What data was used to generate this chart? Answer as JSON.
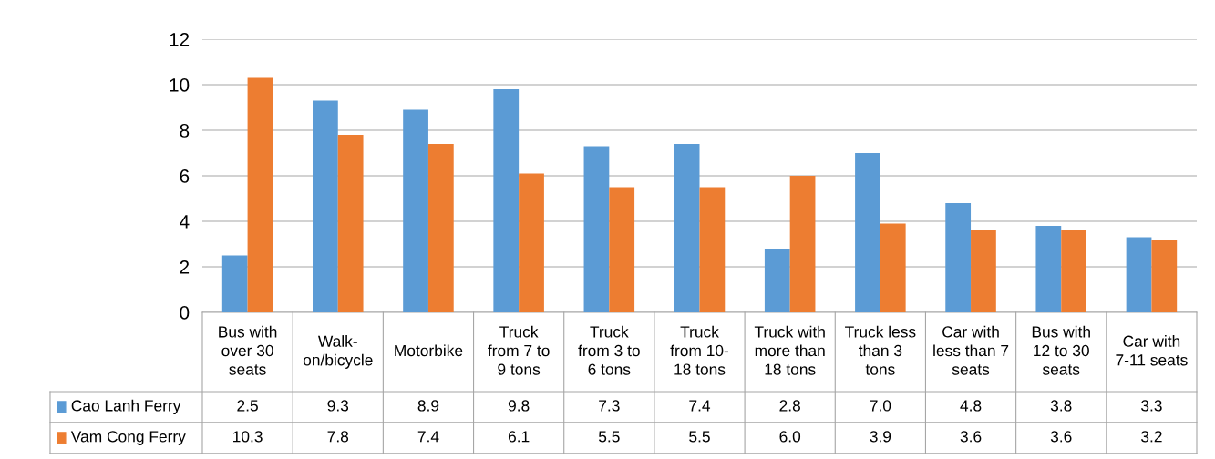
{
  "chart_data": {
    "type": "bar",
    "categories": [
      "Bus with\nover 30\nseats",
      "Walk-\non/bicycle",
      "Motorbike",
      "Truck\nfrom 7 to\n9 tons",
      "Truck\nfrom 3 to\n6 tons",
      "Truck\nfrom 10-\n18 tons",
      "Truck with\nmore than\n18 tons",
      "Truck less\nthan 3\ntons",
      "Car with\nless than 7\nseats",
      "Bus with\n12 to 30\nseats",
      "Car with\n7-11 seats"
    ],
    "series": [
      {
        "name": "Cao Lanh Ferry",
        "color": "#5b9bd5",
        "values": [
          2.5,
          9.3,
          8.9,
          9.8,
          7.3,
          7.4,
          2.8,
          7.0,
          4.8,
          3.8,
          3.3
        ],
        "value_labels": [
          "2.5",
          "9.3",
          "8.9",
          "9.8",
          "7.3",
          "7.4",
          "2.8",
          "7.0",
          "4.8",
          "3.8",
          "3.3"
        ]
      },
      {
        "name": "Vam Cong Ferry",
        "color": "#ed7d31",
        "values": [
          10.3,
          7.8,
          7.4,
          6.1,
          5.5,
          5.5,
          6.0,
          3.9,
          3.6,
          3.6,
          3.2
        ],
        "value_labels": [
          "10.3",
          "7.8",
          "7.4",
          "6.1",
          "5.5",
          "5.5",
          "6.0",
          "3.9",
          "3.6",
          "3.6",
          "3.2"
        ]
      }
    ],
    "ylim": [
      0,
      12
    ],
    "yticks": [
      0,
      2,
      4,
      6,
      8,
      10,
      12
    ],
    "grid": "y",
    "legend": "bottom left"
  }
}
